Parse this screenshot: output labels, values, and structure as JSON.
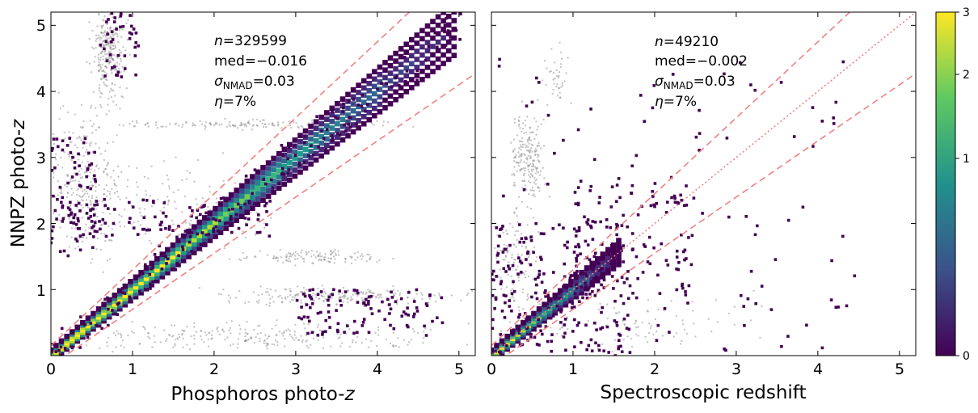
{
  "chart_data": [
    {
      "type": "heatmap",
      "title": "",
      "xlabel": "Phosphoros photo-",
      "xlabel_italic": "z",
      "ylabel": "NNPZ photo-",
      "ylabel_italic": "z",
      "xlim": [
        0,
        5.2
      ],
      "ylim": [
        0,
        5.2
      ],
      "xticks": [
        "0",
        "1",
        "2",
        "3",
        "4",
        "5"
      ],
      "yticks": [
        "1",
        "2",
        "3",
        "4",
        "5"
      ],
      "stats": {
        "n_sym": "n",
        "n_val": "=329599",
        "med": "med=−0.016",
        "sigma_sym": "σ",
        "sigma_sub": "NMAD",
        "sigma_val": "=0.03",
        "eta_sym": "η",
        "eta_val": "=7%"
      },
      "reference_lines": {
        "identity": false,
        "outlier_bounds": [
          0.15,
          -0.15
        ]
      },
      "main_relation": {
        "x": [
          0,
          1,
          2,
          3,
          4,
          5
        ],
        "y": [
          0,
          1,
          2,
          3,
          4,
          5
        ]
      }
    },
    {
      "type": "heatmap",
      "title": "",
      "xlabel": "Spectroscopic redshift",
      "xlim": [
        0,
        5.2
      ],
      "ylim": [
        0,
        5.2
      ],
      "xticks": [
        "0",
        "1",
        "2",
        "3",
        "4",
        "5"
      ],
      "stats": {
        "n_sym": "n",
        "n_val": "=49210",
        "med": "med=−0.002",
        "sigma_sym": "σ",
        "sigma_sub": "NMAD",
        "sigma_val": "=0.03",
        "eta_sym": "η",
        "eta_val": "=7%"
      },
      "reference_lines": {
        "identity": true,
        "outlier_bounds": [
          0.15,
          -0.15
        ]
      },
      "main_relation": {
        "x": [
          0,
          1,
          1.6
        ],
        "y": [
          0,
          1,
          1.6
        ]
      }
    }
  ],
  "colorbar": {
    "ticks": [
      "0",
      "1",
      "2",
      "3"
    ],
    "colors": {
      "low": "#440154",
      "mid_low": "#3b528b",
      "mid": "#21918c",
      "mid_high": "#5ec962",
      "high": "#fde725"
    }
  },
  "colors": {
    "ref_line": "#f08080",
    "outlier_gray": "#808080",
    "density_low": "#440154"
  }
}
